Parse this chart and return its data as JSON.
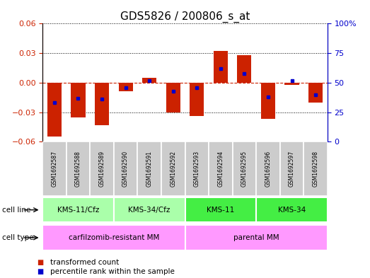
{
  "title": "GDS5826 / 200806_s_at",
  "samples": [
    "GSM1692587",
    "GSM1692588",
    "GSM1692589",
    "GSM1692590",
    "GSM1692591",
    "GSM1692592",
    "GSM1692593",
    "GSM1692594",
    "GSM1692595",
    "GSM1692596",
    "GSM1692597",
    "GSM1692598"
  ],
  "red_values": [
    -0.055,
    -0.035,
    -0.043,
    -0.009,
    0.005,
    -0.03,
    -0.034,
    0.032,
    0.028,
    -0.037,
    -0.002,
    -0.02
  ],
  "blue_percentiles": [
    33,
    37,
    36,
    46,
    52,
    43,
    46,
    62,
    58,
    38,
    52,
    40
  ],
  "cell_line_groups": [
    {
      "label": "KMS-11/Cfz",
      "start": 0,
      "end": 2,
      "color": "#AAFFAA"
    },
    {
      "label": "KMS-34/Cfz",
      "start": 3,
      "end": 5,
      "color": "#AAFFAA"
    },
    {
      "label": "KMS-11",
      "start": 6,
      "end": 8,
      "color": "#44EE44"
    },
    {
      "label": "KMS-34",
      "start": 9,
      "end": 11,
      "color": "#44EE44"
    }
  ],
  "cell_type_groups": [
    {
      "label": "carfilzomib-resistant MM",
      "start": 0,
      "end": 5,
      "color": "#FF99FF"
    },
    {
      "label": "parental MM",
      "start": 6,
      "end": 11,
      "color": "#FF99FF"
    }
  ],
  "ylim_left": [
    -0.06,
    0.06
  ],
  "ylim_right": [
    0,
    100
  ],
  "yticks_left": [
    -0.06,
    -0.03,
    0.0,
    0.03,
    0.06
  ],
  "yticks_right": [
    0,
    25,
    50,
    75,
    100
  ],
  "ytick_right_labels": [
    "0",
    "25",
    "50",
    "75",
    "100%"
  ],
  "bar_color": "#CC2200",
  "dot_color": "#0000CC",
  "left_axis_color": "#CC2200",
  "right_axis_color": "#0000CC",
  "title_fontsize": 11,
  "legend_red_label": "transformed count",
  "legend_blue_label": "percentile rank within the sample",
  "cell_line_row_label": "cell line",
  "cell_type_row_label": "cell type"
}
